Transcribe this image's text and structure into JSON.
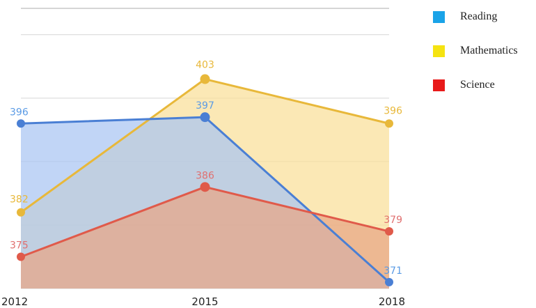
{
  "chart_data": {
    "type": "area",
    "categories": [
      "2012",
      "2015",
      "2018"
    ],
    "series": [
      {
        "name": "Mathematics",
        "values": [
          382,
          403,
          396
        ],
        "line_color": "#E8B83A",
        "fill_color": "#F9DF98",
        "label_color": "#E8B83A"
      },
      {
        "name": "Reading",
        "values": [
          396,
          397,
          371
        ],
        "line_color": "#4A7FD4",
        "fill_color": "#A9C5F2",
        "label_color": "#5B9BE5"
      },
      {
        "name": "Science",
        "values": [
          375,
          386,
          379
        ],
        "line_color": "#E05A4A",
        "fill_color": "#E8A585",
        "label_color": "#E07070"
      }
    ],
    "ylim": [
      370,
      408
    ],
    "gridlines": [
      370,
      380,
      390,
      400,
      410
    ],
    "grid": true,
    "legend_position": "right",
    "legend": [
      {
        "label": "Reading",
        "color": "#1AA3E8"
      },
      {
        "label": "Mathematics",
        "color": "#F5E311"
      },
      {
        "label": "Science",
        "color": "#E81A1A"
      }
    ]
  }
}
